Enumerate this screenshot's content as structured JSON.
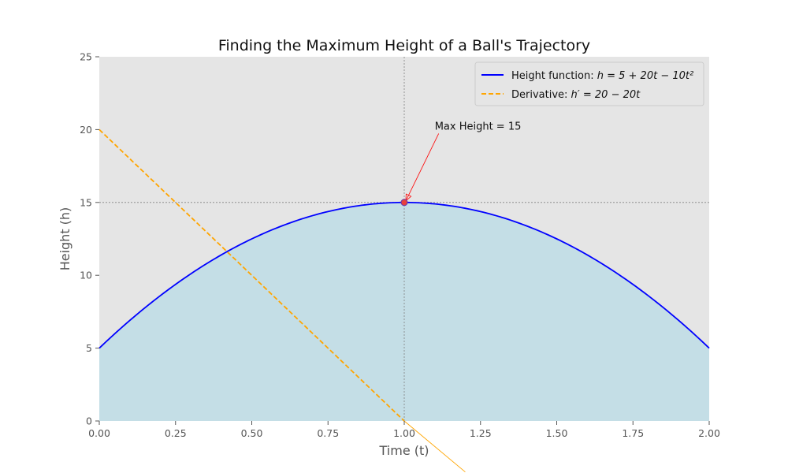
{
  "chart_data": {
    "type": "line",
    "title": "Finding the Maximum Height of a Ball's Trajectory",
    "xlabel": "Time (t)",
    "ylabel": "Height (h)",
    "xlim": [
      0,
      2
    ],
    "ylim": [
      0,
      25
    ],
    "x_ticks": [
      0,
      0.25,
      0.5,
      0.75,
      1.0,
      1.25,
      1.5,
      1.75,
      2.0
    ],
    "x_tick_labels": [
      "0.00",
      "0.25",
      "0.50",
      "0.75",
      "1.00",
      "1.25",
      "1.50",
      "1.75",
      "2.00"
    ],
    "y_ticks": [
      0,
      5,
      10,
      15,
      20,
      25
    ],
    "y_tick_labels": [
      "0",
      "5",
      "10",
      "15",
      "20",
      "25"
    ],
    "grid": false,
    "legend_position": "top-right",
    "series": [
      {
        "name": "Height function",
        "legend_prefix": "Height function: ",
        "legend_math": "h = 5 + 20t − 10t²",
        "color": "#0000ff",
        "style": "solid",
        "function": "5 + 20t - 10t^2",
        "x": [
          0,
          0.25,
          0.5,
          0.75,
          1.0,
          1.25,
          1.5,
          1.75,
          2.0
        ],
        "y": [
          5,
          9.375,
          12.5,
          14.375,
          15,
          14.375,
          12.5,
          9.375,
          5
        ],
        "fill_below": true,
        "fill_color": "#add8e6"
      },
      {
        "name": "Derivative",
        "legend_prefix": "Derivative: ",
        "legend_math": "h′ = 20 − 20t",
        "color": "#ffa500",
        "style": "dashed",
        "function": "20 - 20t",
        "x": [
          0,
          0.25,
          0.5,
          0.75,
          1.0
        ],
        "y": [
          20,
          15,
          10,
          5,
          0
        ]
      },
      {
        "name": "Derivative extension",
        "color": "#ffa500",
        "style": "solid-thin",
        "x": [
          1.0,
          1.2
        ],
        "y": [
          0,
          -3.5
        ]
      }
    ],
    "reference_lines": [
      {
        "orientation": "vertical",
        "value": 1.0,
        "color": "#808080",
        "style": "dotted"
      },
      {
        "orientation": "horizontal",
        "value": 15,
        "color": "#808080",
        "style": "dotted"
      }
    ],
    "max_point": {
      "x": 1.0,
      "y": 15,
      "color": "#e8403c"
    },
    "annotations": [
      {
        "text": "Max Height = 15",
        "text_x": 1.1,
        "text_y": 20,
        "target_x": 1.0,
        "target_y": 15,
        "arrow_color": "#ff0000"
      }
    ]
  }
}
